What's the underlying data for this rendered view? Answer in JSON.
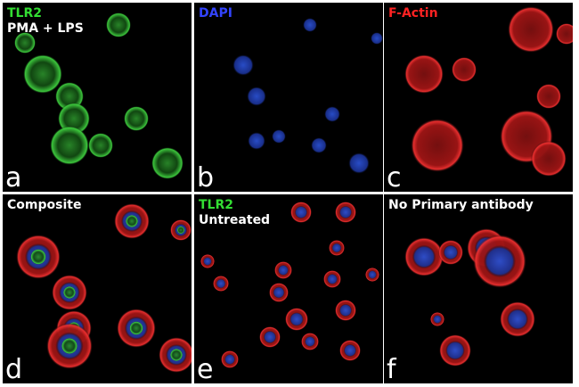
{
  "panels": [
    {
      "letter": "a",
      "labels": [
        {
          "text": "TLR2",
          "color": "#33dd33"
        },
        {
          "text": "PMA + LPS",
          "color": "#ffffff"
        }
      ]
    },
    {
      "letter": "b",
      "labels": [
        {
          "text": "DAPI",
          "color": "#3344ff"
        }
      ]
    },
    {
      "letter": "c",
      "labels": [
        {
          "text": "F-Actin",
          "color": "#ff2222"
        }
      ]
    },
    {
      "letter": "d",
      "labels": [
        {
          "text": "Composite",
          "color": "#ffffff"
        }
      ]
    },
    {
      "letter": "e",
      "labels": [
        {
          "text": "TLR2",
          "color": "#33dd33"
        },
        {
          "text": "Untreated",
          "color": "#ffffff"
        }
      ]
    },
    {
      "letter": "f",
      "labels": [
        {
          "text": "No Primary antibody",
          "color": "#ffffff"
        }
      ]
    }
  ]
}
